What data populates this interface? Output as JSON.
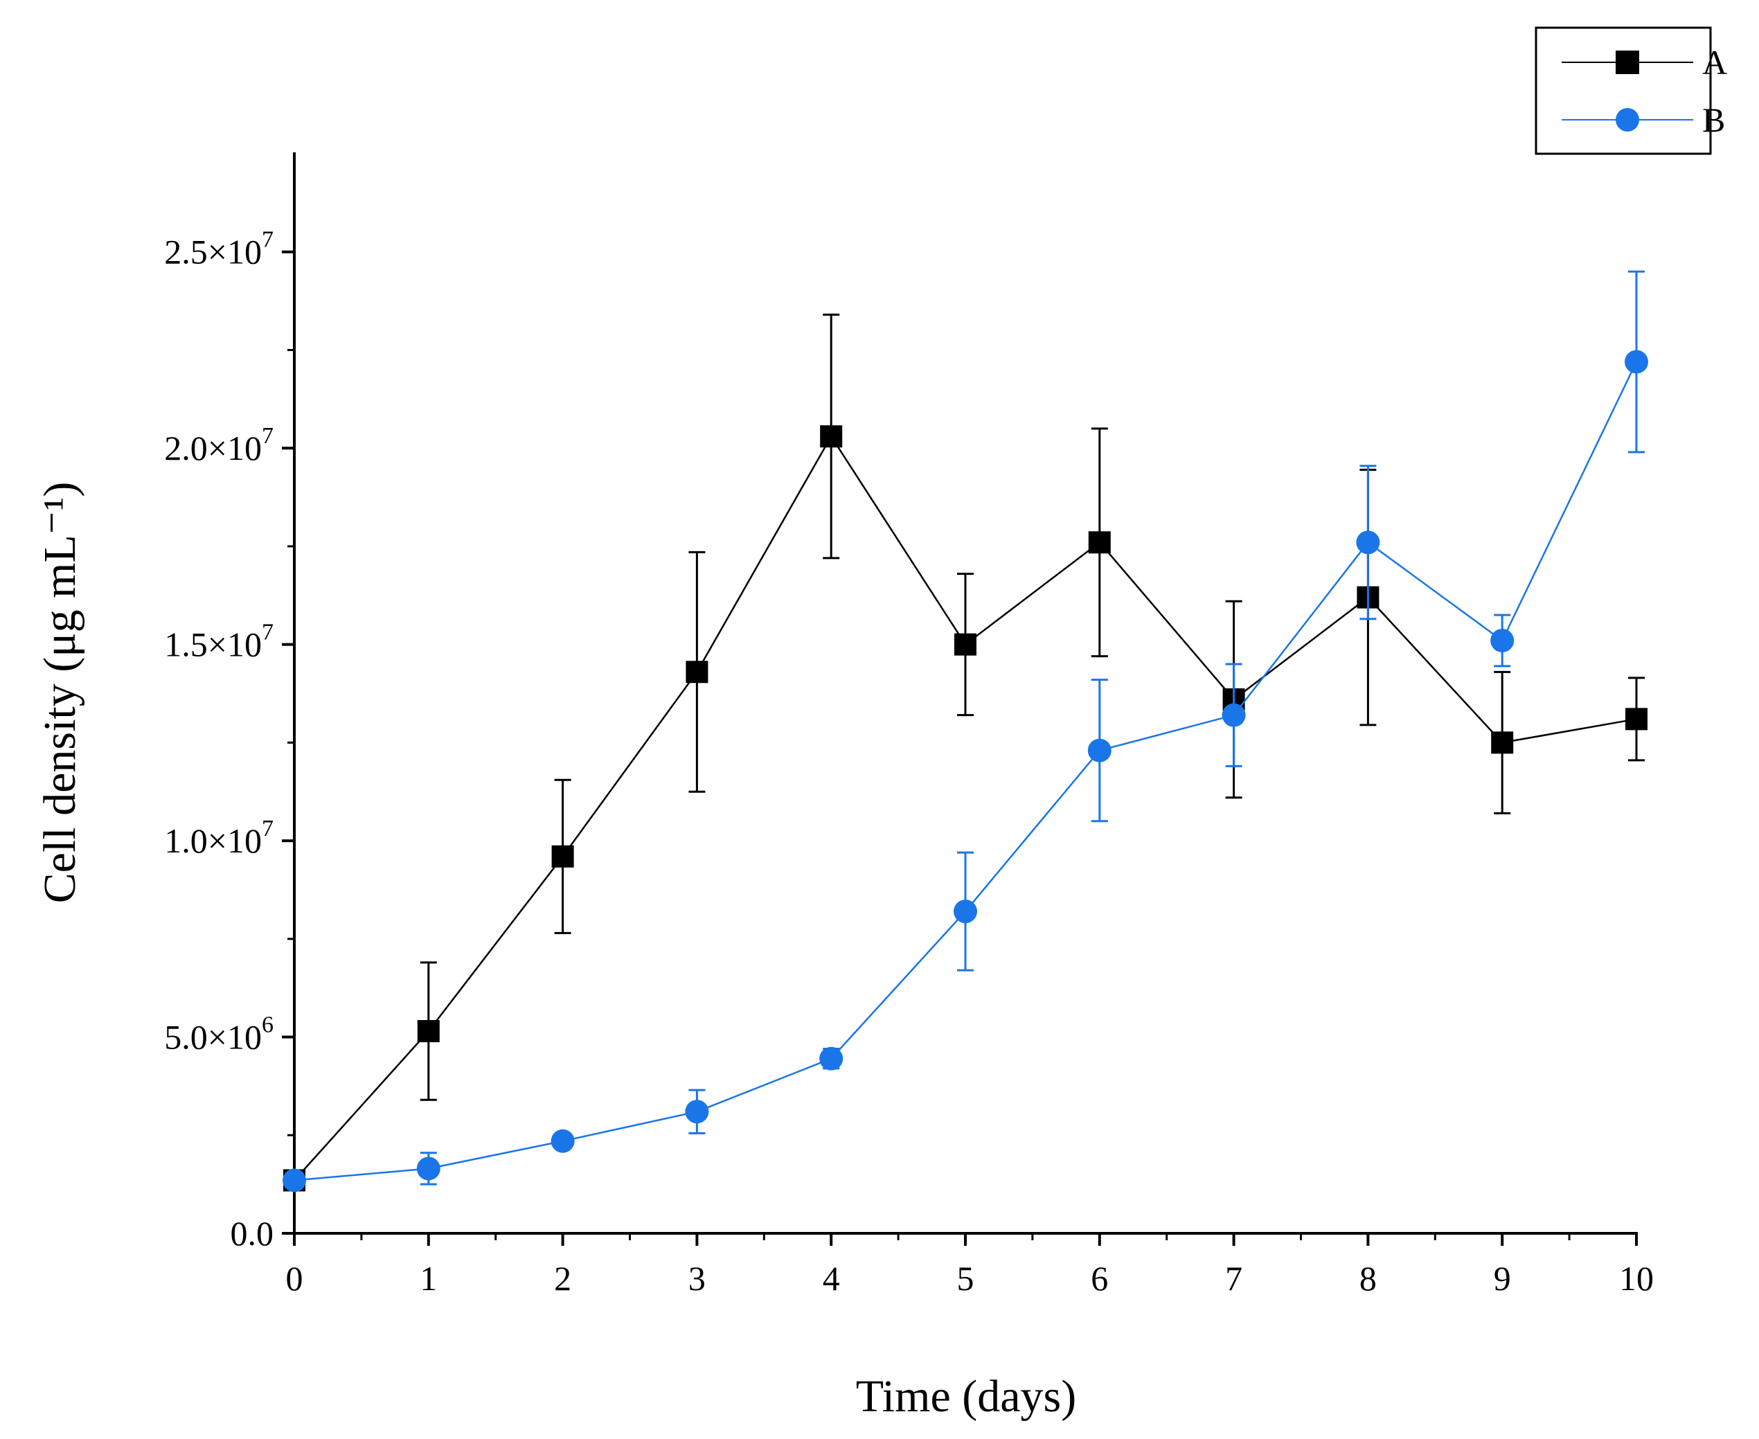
{
  "chart_data": {
    "type": "line",
    "title": "",
    "xlabel": "Time (days)",
    "ylabel": "Cell density (μg mL⁻¹)",
    "xlim": [
      0,
      10
    ],
    "ylim": [
      0,
      27500000
    ],
    "x_ticks": [
      0,
      1,
      2,
      3,
      4,
      5,
      6,
      7,
      8,
      9,
      10
    ],
    "x_tick_labels": [
      "0",
      "1",
      "2",
      "3",
      "4",
      "5",
      "6",
      "7",
      "8",
      "9",
      "10"
    ],
    "y_ticks": [
      {
        "value": 0,
        "mantissa": "0.0",
        "exponent": ""
      },
      {
        "value": 5000000,
        "mantissa": "5.0×10",
        "exponent": "6"
      },
      {
        "value": 10000000,
        "mantissa": "1.0×10",
        "exponent": "7"
      },
      {
        "value": 15000000,
        "mantissa": "1.5×10",
        "exponent": "7"
      },
      {
        "value": 20000000,
        "mantissa": "2.0×10",
        "exponent": "7"
      },
      {
        "value": 25000000,
        "mantissa": "2.5×10",
        "exponent": "7"
      }
    ],
    "legend_position": "top-right, outside plot",
    "grid": false,
    "series": [
      {
        "name": "A",
        "color": "#000000",
        "marker": "square",
        "x": [
          0,
          1,
          2,
          3,
          4,
          5,
          6,
          7,
          8,
          9,
          10
        ],
        "y": [
          1350000,
          5150000,
          9600000,
          14300000,
          20300000,
          15000000,
          17600000,
          13600000,
          16200000,
          12500000,
          13100000
        ],
        "error": [
          0,
          1750000,
          1950000,
          3050000,
          3100000,
          1800000,
          2900000,
          2500000,
          3250000,
          1800000,
          1050000
        ]
      },
      {
        "name": "B",
        "color": "#1a75e8",
        "marker": "circle",
        "x": [
          0,
          1,
          2,
          3,
          4,
          5,
          6,
          7,
          8,
          9,
          10
        ],
        "y": [
          1350000,
          1650000,
          2350000,
          3100000,
          4450000,
          8200000,
          12300000,
          13200000,
          17600000,
          15100000,
          22200000
        ],
        "error": [
          0,
          400000,
          0,
          550000,
          250000,
          1500000,
          1800000,
          1300000,
          1950000,
          650000,
          2300000
        ]
      }
    ]
  }
}
